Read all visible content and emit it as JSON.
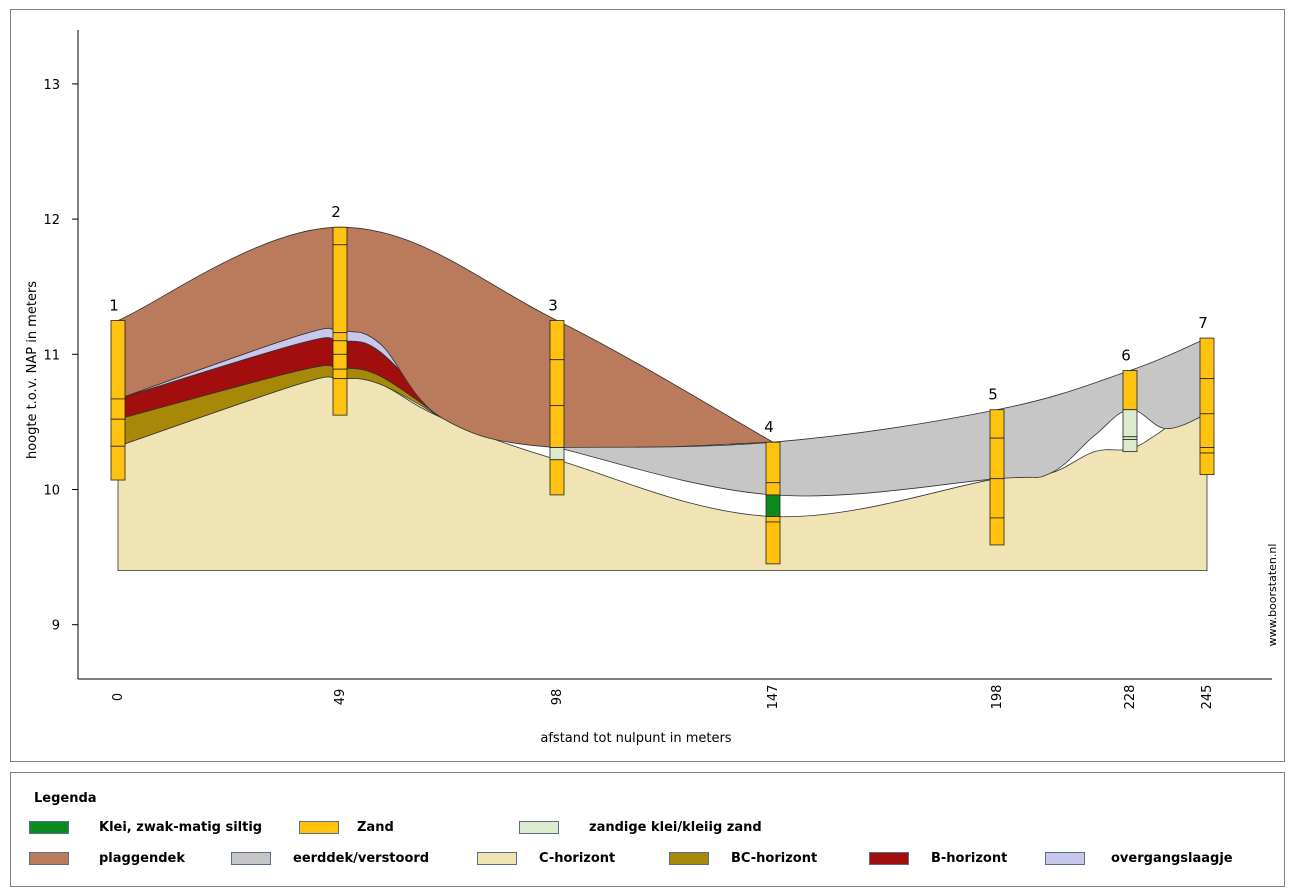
{
  "chart_data": {
    "type": "area",
    "title": "",
    "xlabel": "afstand tot nulpunt in meters",
    "ylabel": "hoogte t.o.v. NAP in meters",
    "x_ticks": [
      0,
      49,
      98,
      147,
      198,
      228,
      245
    ],
    "y_ticks": [
      9,
      10,
      11,
      12,
      13
    ],
    "ylim": [
      8.6,
      13.4
    ],
    "grid": false,
    "legend_position": "bottom",
    "watermark": "www.boorstaten.nl",
    "boreholes": [
      {
        "label": "1",
        "x": 0,
        "top": 11.25,
        "bottom": 10.07,
        "breaks": [
          10.67,
          10.52,
          10.32
        ],
        "fills": [
          "#FFC20E",
          "#FFC20E",
          "#FFC20E",
          "#FFC20E"
        ]
      },
      {
        "label": "2",
        "x": 49,
        "top": 11.94,
        "bottom": 10.55,
        "breaks": [
          11.81,
          11.16,
          11.1,
          11.0,
          10.89,
          10.82
        ],
        "fills": [
          "#FFC20E",
          "#FFC20E",
          "#FFC20E",
          "#FFC20E",
          "#FFC20E",
          "#FFC20E",
          "#FFC20E"
        ]
      },
      {
        "label": "3",
        "x": 98,
        "top": 11.25,
        "bottom": 9.96,
        "breaks": [
          10.96,
          10.62,
          10.31,
          10.22
        ],
        "fills": [
          "#FFC20E",
          "#FFC20E",
          "#FFC20E",
          "#DCEBCB",
          "#FFC20E"
        ]
      },
      {
        "label": "4",
        "x": 147,
        "top": 10.35,
        "bottom": 9.45,
        "breaks": [
          10.05,
          9.96,
          9.8,
          9.76
        ],
        "fills": [
          "#FFC20E",
          "#FFC20E",
          "#0B8A1E",
          "#FFC20E",
          "#FFC20E"
        ]
      },
      {
        "label": "5",
        "x": 198,
        "top": 10.59,
        "bottom": 9.59,
        "breaks": [
          10.38,
          10.08,
          9.79
        ],
        "fills": [
          "#FFC20E",
          "#FFC20E",
          "#FFC20E",
          "#FFC20E"
        ]
      },
      {
        "label": "6",
        "x": 228,
        "top": 10.88,
        "bottom": 10.28,
        "breaks": [
          10.59,
          10.39,
          10.37
        ],
        "fills": [
          "#FFC20E",
          "#DCEBCB",
          "#DCEBCB",
          "#DCEBCB"
        ]
      },
      {
        "label": "7",
        "x": 245,
        "top": 11.12,
        "bottom": 10.11,
        "breaks": [
          10.82,
          10.56,
          10.31,
          10.27
        ],
        "fills": [
          "#FFC20E",
          "#FFC20E",
          "#FFC20E",
          "#FFC20E",
          "#FFC20E"
        ]
      }
    ],
    "layers": [
      {
        "name": "C-horizont",
        "color": "#F0E4B4",
        "upper": [
          [
            0,
            10.32
          ],
          [
            40,
            10.78
          ],
          [
            49,
            10.82
          ],
          [
            58,
            10.78
          ],
          [
            72,
            10.53
          ],
          [
            98,
            10.22
          ],
          [
            147,
            9.8
          ],
          [
            198,
            10.08
          ],
          [
            210,
            10.12
          ],
          [
            220,
            10.28
          ],
          [
            228,
            10.3
          ],
          [
            234,
            10.41
          ],
          [
            240,
            10.55
          ],
          [
            245,
            10.56
          ]
        ],
        "lower": 9.4
      },
      {
        "name": "BC-horizont",
        "color": "#A88907",
        "upper": [
          [
            0,
            10.52
          ],
          [
            40,
            10.88
          ],
          [
            49,
            10.9
          ],
          [
            58,
            10.84
          ],
          [
            72,
            10.53
          ]
        ],
        "lower": [
          [
            0,
            10.32
          ],
          [
            40,
            10.78
          ],
          [
            49,
            10.82
          ],
          [
            58,
            10.78
          ],
          [
            72,
            10.53
          ]
        ]
      },
      {
        "name": "B-horizont",
        "color": "#A20D0D",
        "upper": [
          [
            0,
            10.67
          ],
          [
            40,
            11.08
          ],
          [
            49,
            11.1
          ],
          [
            58,
            11.02
          ],
          [
            72,
            10.53
          ]
        ],
        "lower": [
          [
            0,
            10.52
          ],
          [
            40,
            10.88
          ],
          [
            49,
            10.9
          ],
          [
            58,
            10.84
          ],
          [
            72,
            10.53
          ]
        ]
      },
      {
        "name": "overgangslaagje",
        "color": "#C8C8EC",
        "upper": [
          [
            0,
            10.67
          ],
          [
            40,
            11.14
          ],
          [
            49,
            11.17
          ],
          [
            58,
            11.08
          ],
          [
            72,
            10.53
          ]
        ],
        "lower": [
          [
            0,
            10.67
          ],
          [
            40,
            11.08
          ],
          [
            49,
            11.1
          ],
          [
            58,
            11.02
          ],
          [
            72,
            10.53
          ]
        ]
      },
      {
        "name": "plaggendek",
        "color": "#B97B5C",
        "upper": [
          [
            0,
            11.25
          ],
          [
            49,
            11.94
          ],
          [
            98,
            11.25
          ],
          [
            147,
            10.35
          ]
        ],
        "lower": [
          [
            0,
            10.67
          ],
          [
            40,
            11.14
          ],
          [
            49,
            11.17
          ],
          [
            58,
            11.08
          ],
          [
            72,
            10.53
          ],
          [
            98,
            10.31
          ],
          [
            147,
            10.35
          ]
        ]
      },
      {
        "name": "eerddek/verstoord",
        "color": "#C6C6C6",
        "upper": [
          [
            98,
            10.31
          ],
          [
            147,
            10.35
          ],
          [
            198,
            10.59
          ],
          [
            228,
            10.88
          ],
          [
            245,
            11.12
          ]
        ],
        "lower": [
          [
            98,
            10.31
          ],
          [
            147,
            9.96
          ],
          [
            198,
            10.08
          ],
          [
            210,
            10.12
          ],
          [
            220,
            10.4
          ],
          [
            228,
            10.59
          ],
          [
            236,
            10.45
          ],
          [
            245,
            10.56
          ]
        ]
      }
    ],
    "legend": [
      {
        "label": "Klei, zwak-matig siltig",
        "color": "#0B8A1E"
      },
      {
        "label": "Zand",
        "color": "#FFC20E"
      },
      {
        "label": "zandige klei/kleiig zand",
        "color": "#DCEBCB"
      },
      {
        "label": "plaggendek",
        "color": "#B97B5C"
      },
      {
        "label": "eerddek/verstoord",
        "color": "#C6C6C6"
      },
      {
        "label": "C-horizont",
        "color": "#F0E4B4"
      },
      {
        "label": "BC-horizont",
        "color": "#A88907"
      },
      {
        "label": "B-horizont",
        "color": "#A20D0D"
      },
      {
        "label": "overgangslaagje",
        "color": "#C8C8EC"
      }
    ]
  },
  "legend_title": "Legenda"
}
